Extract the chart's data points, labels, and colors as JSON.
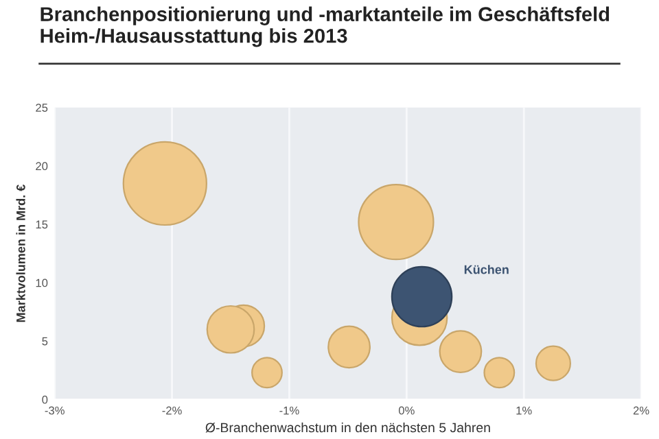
{
  "chart_data": {
    "type": "bubble",
    "title": "Branchenpositionierung und -marktanteile im Geschäftsfeld Heim-/Hausausstattung bis 2013",
    "xlabel": "Ø-Branchenwachstum in den nächsten 5 Jahren",
    "ylabel": "Marktvolumen in Mrd. €",
    "series": [
      {
        "color": "#f0c98a",
        "x": [
          -2.06,
          -0.09,
          0.11,
          -1.39,
          -1.5,
          -1.19,
          -0.49,
          0.46,
          0.79,
          1.25
        ],
        "values": [
          18.5,
          15.2,
          7.0,
          6.3,
          6.0,
          2.3,
          4.5,
          4.1,
          2.3,
          3.1
        ],
        "sizes": [
          1,
          0.81,
          0.44,
          0.25,
          0.32,
          0.13,
          0.25,
          0.25,
          0.13,
          0.17
        ]
      },
      {
        "name": "Küchen",
        "color": "#3d5472",
        "x": [
          0.13
        ],
        "values": [
          8.8
        ],
        "sizes": [
          0.52
        ]
      }
    ],
    "xlim": [
      -3,
      2
    ],
    "xticks": [
      {
        "value": -3,
        "label": "-3%"
      },
      {
        "value": -2,
        "label": "-2%"
      },
      {
        "value": -1,
        "label": "-1%"
      },
      {
        "value": 0,
        "label": "0%"
      },
      {
        "value": 1,
        "label": "1%"
      },
      {
        "value": 2,
        "label": "2%"
      }
    ],
    "ylim": [
      0,
      25
    ],
    "yticks": [
      0,
      5,
      10,
      15,
      20,
      25
    ],
    "grid": "x",
    "legend": false
  }
}
